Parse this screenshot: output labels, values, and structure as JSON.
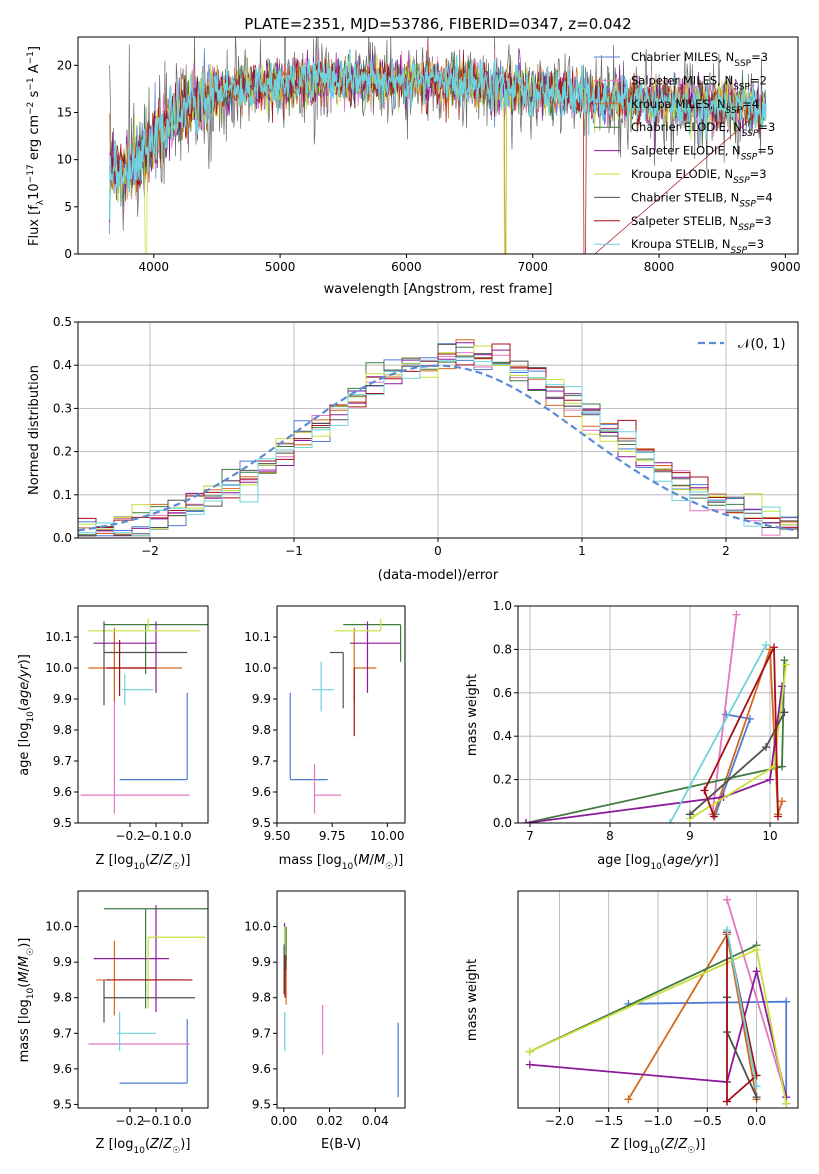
{
  "title": "PLATE=2351, MJD=53786, FIBERID=0347, z=0.042",
  "colors": {
    "Chabrier MILES": "#4f7bd6",
    "Salpeter MILES": "#e377c2",
    "Kroupa MILES": "#d2691e",
    "Chabrier ELODIE": "#3f7a3f",
    "Salpeter ELODIE": "#8b1a9b",
    "Kroupa ELODIE": "#c8e03c",
    "Chabrier STELIB": "#505050",
    "Salpeter STELIB": "#a50f15",
    "Kroupa STELIB": "#6ed3dc"
  },
  "chart_data": [
    {
      "id": "spectrum",
      "type": "line",
      "xlabel": "wavelength [Angstrom, rest frame]",
      "ylabel": "Flux [f_λ10⁻¹⁷ erg cm⁻² s⁻¹ A⁻¹]",
      "xlim": [
        3400,
        9100
      ],
      "ylim": [
        0,
        23
      ],
      "xticks": [
        4000,
        5000,
        6000,
        7000,
        8000,
        9000
      ],
      "yticks": [
        0,
        5,
        10,
        15,
        20
      ],
      "continuum": [
        [
          3650,
          9
        ],
        [
          3800,
          8.5
        ],
        [
          3950,
          11
        ],
        [
          4100,
          13.5
        ],
        [
          4300,
          16
        ],
        [
          4600,
          17.5
        ],
        [
          5000,
          18
        ],
        [
          5500,
          18.6
        ],
        [
          6000,
          18.3
        ],
        [
          6500,
          18
        ],
        [
          7000,
          17.4
        ],
        [
          7500,
          16.6
        ],
        [
          8000,
          16.1
        ],
        [
          8500,
          15.7
        ],
        [
          8850,
          15.6
        ]
      ],
      "legend": [
        {
          "name": "Chabrier MILES",
          "nssp": "3"
        },
        {
          "name": "Salpeter MILES",
          "nssp": "2"
        },
        {
          "name": "Kroupa MILES",
          "nssp": "4"
        },
        {
          "name": "Chabrier ELODIE",
          "nssp": "3"
        },
        {
          "name": "Salpeter ELODIE",
          "nssp": "5"
        },
        {
          "name": "Kroupa ELODIE",
          "nssp": "3"
        },
        {
          "name": "Chabrier STELIB",
          "nssp": "4"
        },
        {
          "name": "Salpeter STELIB",
          "nssp": "3"
        },
        {
          "name": "Kroupa STELIB",
          "nssp": "3"
        }
      ],
      "legend_prefix": "N",
      "legend_sub": "SSP",
      "legend_location": "upper right"
    },
    {
      "id": "residuals",
      "type": "histogram",
      "xlabel": "(data-model)/error",
      "ylabel": "Normed distribution",
      "xlim": [
        -2.5,
        2.5
      ],
      "ylim": [
        0,
        0.5
      ],
      "xticks": [
        -2,
        -1,
        0,
        1,
        2
      ],
      "yticks": [
        0.0,
        0.1,
        0.2,
        0.3,
        0.4,
        0.5
      ],
      "bin_width": 0.125,
      "reference": "N(0,1)",
      "legend_label": "𝒩(0, 1)",
      "grid": true
    },
    {
      "id": "age_vs_Z",
      "type": "errorbar",
      "xlabel": "Z [log₁₀(Z/Z☉)]",
      "ylabel": "age  [log₁₀(age/yr)]",
      "xlim": [
        -0.4,
        0.1
      ],
      "ylim": [
        9.5,
        10.2
      ],
      "xticks": [
        -0.2,
        -0.1,
        0.0
      ],
      "yticks": [
        9.5,
        9.6,
        9.7,
        9.8,
        9.9,
        10.0,
        10.1
      ],
      "points": [
        {
          "series": "Chabrier MILES",
          "x": 0.02,
          "xerr": [
            0.26,
            0.0
          ],
          "y": 9.64,
          "yerr": [
            0.0,
            0.28
          ]
        },
        {
          "series": "Salpeter MILES",
          "x": -0.26,
          "xerr": [
            0.13,
            0.29
          ],
          "y": 9.59,
          "yerr": [
            0.06,
            0.53
          ]
        },
        {
          "series": "Kroupa MILES",
          "x": -0.26,
          "xerr": [
            0.1,
            0.26
          ],
          "y": 10.0,
          "yerr": [
            0.11,
            0.13
          ]
        },
        {
          "series": "Chabrier ELODIE",
          "x": -0.14,
          "xerr": [
            0.16,
            0.24
          ],
          "y": 10.14,
          "yerr": [
            0.16,
            0.0
          ]
        },
        {
          "series": "Salpeter ELODIE",
          "x": -0.1,
          "xerr": [
            0.24,
            0.0
          ],
          "y": 10.08,
          "yerr": [
            0.16,
            0.07
          ]
        },
        {
          "series": "Kroupa ELODIE",
          "x": -0.13,
          "xerr": [
            0.23,
            0.2
          ],
          "y": 10.12,
          "yerr": [
            0.0,
            0.04
          ]
        },
        {
          "series": "Chabrier STELIB",
          "x": -0.3,
          "xerr": [
            0.0,
            0.32
          ],
          "y": 10.05,
          "yerr": [
            0.17,
            0.1
          ]
        },
        {
          "series": "Salpeter STELIB",
          "x": -0.24,
          "xerr": [
            0.05,
            0.14
          ],
          "y": 10.0,
          "yerr": [
            0.09,
            0.09
          ]
        },
        {
          "series": "Kroupa STELIB",
          "x": -0.22,
          "xerr": [
            0.01,
            0.11
          ],
          "y": 9.93,
          "yerr": [
            0.05,
            0.05
          ]
        }
      ]
    },
    {
      "id": "age_vs_mass",
      "type": "errorbar",
      "xlabel": "mass [log₁₀(M/M☉)]",
      "ylabel": "",
      "xlim": [
        9.5,
        10.08
      ],
      "ylim": [
        9.5,
        10.2
      ],
      "xticks": [
        9.5,
        9.75,
        10.0
      ],
      "yticks": [
        9.5,
        9.6,
        9.7,
        9.8,
        9.9,
        10.0,
        10.1
      ],
      "points": [
        {
          "series": "Chabrier MILES",
          "x": 9.56,
          "xerr": [
            0.0,
            0.17
          ],
          "y": 9.64,
          "yerr": [
            0.0,
            0.28
          ]
        },
        {
          "series": "Salpeter MILES",
          "x": 9.67,
          "xerr": [
            0.0,
            0.12
          ],
          "y": 9.59,
          "yerr": [
            0.06,
            0.1
          ]
        },
        {
          "series": "Kroupa MILES",
          "x": 9.85,
          "xerr": [
            0.0,
            0.1
          ],
          "y": 10.0,
          "yerr": [
            0.11,
            0.13
          ]
        },
        {
          "series": "Chabrier ELODIE",
          "x": 10.06,
          "xerr": [
            0.26,
            0.0
          ],
          "y": 10.14,
          "yerr": [
            0.12,
            0.0
          ]
        },
        {
          "series": "Salpeter ELODIE",
          "x": 9.91,
          "xerr": [
            0.08,
            0.15
          ],
          "y": 10.08,
          "yerr": [
            0.16,
            0.07
          ]
        },
        {
          "series": "Kroupa ELODIE",
          "x": 9.97,
          "xerr": [
            0.21,
            0.0
          ],
          "y": 10.12,
          "yerr": [
            0.0,
            0.04
          ]
        },
        {
          "series": "Chabrier STELIB",
          "x": 9.8,
          "xerr": [
            0.06,
            0.0
          ],
          "y": 10.05,
          "yerr": [
            0.18,
            0.0
          ]
        },
        {
          "series": "Salpeter STELIB",
          "x": 9.85,
          "xerr": [
            0.0,
            0.0
          ],
          "y": 10.0,
          "yerr": [
            0.22,
            0.0
          ]
        },
        {
          "series": "Kroupa STELIB",
          "x": 9.7,
          "xerr": [
            0.04,
            0.06
          ],
          "y": 9.93,
          "yerr": [
            0.07,
            0.09
          ]
        }
      ]
    },
    {
      "id": "weight_vs_age",
      "type": "line",
      "xlabel": "age  [log₁₀(age/yr)]",
      "ylabel": "mass weight",
      "xlim": [
        6.85,
        10.35
      ],
      "ylim": [
        0,
        1.0
      ],
      "xticks": [
        7,
        8,
        9,
        10
      ],
      "yticks": [
        0.0,
        0.2,
        0.4,
        0.6,
        0.8,
        1.0
      ],
      "grid": true,
      "series": [
        {
          "name": "Chabrier MILES",
          "points": [
            [
              9.45,
              0.5
            ],
            [
              9.75,
              0.48
            ],
            [
              9.32,
              0.04
            ]
          ]
        },
        {
          "name": "Salpeter MILES",
          "points": [
            [
              9.28,
              0.04
            ],
            [
              9.58,
              0.96
            ]
          ]
        },
        {
          "name": "Kroupa MILES",
          "points": [
            [
              9.3,
              0.04
            ],
            [
              10.0,
              0.8
            ],
            [
              10.1,
              0.04
            ],
            [
              10.15,
              0.1
            ]
          ]
        },
        {
          "name": "Chabrier ELODIE",
          "points": [
            [
              6.95,
              0.0
            ],
            [
              10.15,
              0.26
            ],
            [
              10.18,
              0.75
            ]
          ]
        },
        {
          "name": "Salpeter ELODIE",
          "points": [
            [
              6.95,
              0.0
            ],
            [
              9.42,
              0.12
            ],
            [
              10.0,
              0.2
            ],
            [
              10.15,
              0.63
            ]
          ]
        },
        {
          "name": "Kroupa ELODIE",
          "points": [
            [
              9.0,
              0.02
            ],
            [
              10.05,
              0.26
            ],
            [
              10.2,
              0.73
            ]
          ]
        },
        {
          "name": "Chabrier STELIB",
          "points": [
            [
              9.0,
              0.04
            ],
            [
              9.95,
              0.35
            ],
            [
              10.18,
              0.51
            ]
          ]
        },
        {
          "name": "Salpeter STELIB",
          "points": [
            [
              9.3,
              0.03
            ],
            [
              9.18,
              0.15
            ],
            [
              10.05,
              0.81
            ],
            [
              10.1,
              0.03
            ]
          ]
        },
        {
          "name": "Kroupa STELIB",
          "points": [
            [
              8.75,
              0.0
            ],
            [
              9.95,
              0.82
            ]
          ]
        }
      ]
    },
    {
      "id": "mass_vs_Z",
      "type": "errorbar",
      "xlabel": "Z [log₁₀(Z/Z☉)]",
      "ylabel": "mass [log₁₀(M/M☉)]",
      "xlim": [
        -0.4,
        0.1
      ],
      "ylim": [
        9.49,
        10.1
      ],
      "xticks": [
        -0.2,
        -0.1,
        0.0
      ],
      "yticks": [
        9.5,
        9.6,
        9.7,
        9.8,
        9.9,
        10.0
      ],
      "points": [
        {
          "series": "Chabrier MILES",
          "x": 0.02,
          "xerr": [
            0.26,
            0.0
          ],
          "y": 9.56,
          "yerr": [
            0.0,
            0.18
          ]
        },
        {
          "series": "Salpeter MILES",
          "x": 0.03,
          "xerr": [
            0.39,
            0.0
          ],
          "y": 9.67,
          "yerr": [
            0.0,
            0.0
          ]
        },
        {
          "series": "Kroupa MILES",
          "x": -0.26,
          "xerr": [
            0.07,
            0.26
          ],
          "y": 9.85,
          "yerr": [
            0.1,
            0.11
          ]
        },
        {
          "series": "Chabrier ELODIE",
          "x": -0.14,
          "xerr": [
            0.16,
            0.24
          ],
          "y": 10.05,
          "yerr": [
            0.28,
            0.0
          ]
        },
        {
          "series": "Salpeter ELODIE",
          "x": -0.1,
          "xerr": [
            0.24,
            0.05
          ],
          "y": 9.91,
          "yerr": [
            0.15,
            0.15
          ]
        },
        {
          "series": "Kroupa ELODIE",
          "x": -0.13,
          "xerr": [
            0.0,
            0.22
          ],
          "y": 9.97,
          "yerr": [
            0.2,
            0.0
          ]
        },
        {
          "series": "Chabrier STELIB",
          "x": -0.3,
          "xerr": [
            0.0,
            0.35
          ],
          "y": 9.8,
          "yerr": [
            0.07,
            0.05
          ]
        },
        {
          "series": "Salpeter STELIB",
          "x": -0.24,
          "xerr": [
            0.05,
            0.28
          ],
          "y": 9.85,
          "yerr": [
            0.0,
            0.0
          ]
        },
        {
          "series": "Kroupa STELIB",
          "x": -0.24,
          "xerr": [
            0.01,
            0.14
          ],
          "y": 9.7,
          "yerr": [
            0.05,
            0.06
          ]
        }
      ]
    },
    {
      "id": "mass_vs_ebv",
      "type": "errorbar",
      "xlabel": "E(B-V)",
      "ylabel": "",
      "xlim": [
        -0.003,
        0.053
      ],
      "ylim": [
        9.49,
        10.1
      ],
      "xticks": [
        0.0,
        0.02,
        0.04
      ],
      "yticks": [
        9.5,
        9.6,
        9.7,
        9.8,
        9.9,
        10.0
      ],
      "points": [
        {
          "series": "Chabrier MILES",
          "x": 0.05,
          "y": 9.62,
          "yerr": [
            0.1,
            0.11
          ]
        },
        {
          "series": "Salpeter MILES",
          "x": 0.017,
          "y": 9.71,
          "yerr": [
            0.07,
            0.07
          ]
        },
        {
          "series": "Kroupa MILES",
          "x": 0.001,
          "y": 9.85,
          "yerr": [
            0.07,
            0.07
          ]
        },
        {
          "series": "Chabrier ELODIE",
          "x": 0.001,
          "y": 9.94,
          "yerr": [
            0.06,
            0.06
          ]
        },
        {
          "series": "Salpeter ELODIE",
          "x": 0.0003,
          "y": 9.96,
          "yerr": [
            0.07,
            0.05
          ]
        },
        {
          "series": "Kroupa ELODIE",
          "x": 0.0003,
          "y": 9.95,
          "yerr": [
            0.05,
            0.05
          ]
        },
        {
          "series": "Chabrier STELIB",
          "x": 0.0001,
          "y": 9.88,
          "yerr": [
            0.07,
            0.07
          ]
        },
        {
          "series": "Salpeter STELIB",
          "x": 0.0005,
          "y": 9.87,
          "yerr": [
            0.07,
            0.05
          ]
        },
        {
          "series": "Kroupa STELIB",
          "x": 0.0004,
          "y": 9.71,
          "yerr": [
            0.06,
            0.05
          ]
        }
      ]
    },
    {
      "id": "weight_vs_Z",
      "type": "line",
      "xlabel": "Z [log₁₀(Z/Z☉)]",
      "ylabel": "mass weight",
      "xlim": [
        -2.42,
        0.42
      ],
      "ylim": [
        0,
        1.0
      ],
      "xticks": [
        -2.0,
        -1.5,
        -1.0,
        -0.5,
        0.0
      ],
      "grid": true,
      "series": [
        {
          "name": "Chabrier MILES",
          "points": [
            [
              -1.3,
              0.48
            ],
            [
              0.3,
              0.49
            ],
            [
              0.3,
              0.02
            ]
          ]
        },
        {
          "name": "Salpeter MILES",
          "points": [
            [
              -0.3,
              0.96
            ],
            [
              0.3,
              0.05
            ]
          ]
        },
        {
          "name": "Kroupa MILES",
          "points": [
            [
              -1.3,
              0.04
            ],
            [
              -0.3,
              0.8
            ],
            [
              0.0,
              0.04
            ]
          ]
        },
        {
          "name": "Chabrier ELODIE",
          "points": [
            [
              -2.3,
              0.26
            ],
            [
              0.0,
              0.75
            ]
          ]
        },
        {
          "name": "Salpeter ELODIE",
          "points": [
            [
              -2.3,
              0.2
            ],
            [
              -0.3,
              0.12
            ],
            [
              0.0,
              0.63
            ],
            [
              0.3,
              0.05
            ]
          ]
        },
        {
          "name": "Kroupa ELODIE",
          "points": [
            [
              -2.3,
              0.26
            ],
            [
              0.0,
              0.73
            ],
            [
              0.3,
              0.02
            ]
          ]
        },
        {
          "name": "Chabrier STELIB",
          "points": [
            [
              -0.3,
              0.51
            ],
            [
              -0.3,
              0.35
            ],
            [
              0.0,
              0.05
            ]
          ]
        },
        {
          "name": "Salpeter STELIB",
          "points": [
            [
              -0.3,
              0.03
            ],
            [
              -0.3,
              0.81
            ],
            [
              0.0,
              0.15
            ],
            [
              -0.3,
              0.03
            ]
          ]
        },
        {
          "name": "Kroupa STELIB",
          "points": [
            [
              -0.3,
              0.82
            ],
            [
              0.0,
              0.1
            ]
          ]
        }
      ]
    }
  ]
}
